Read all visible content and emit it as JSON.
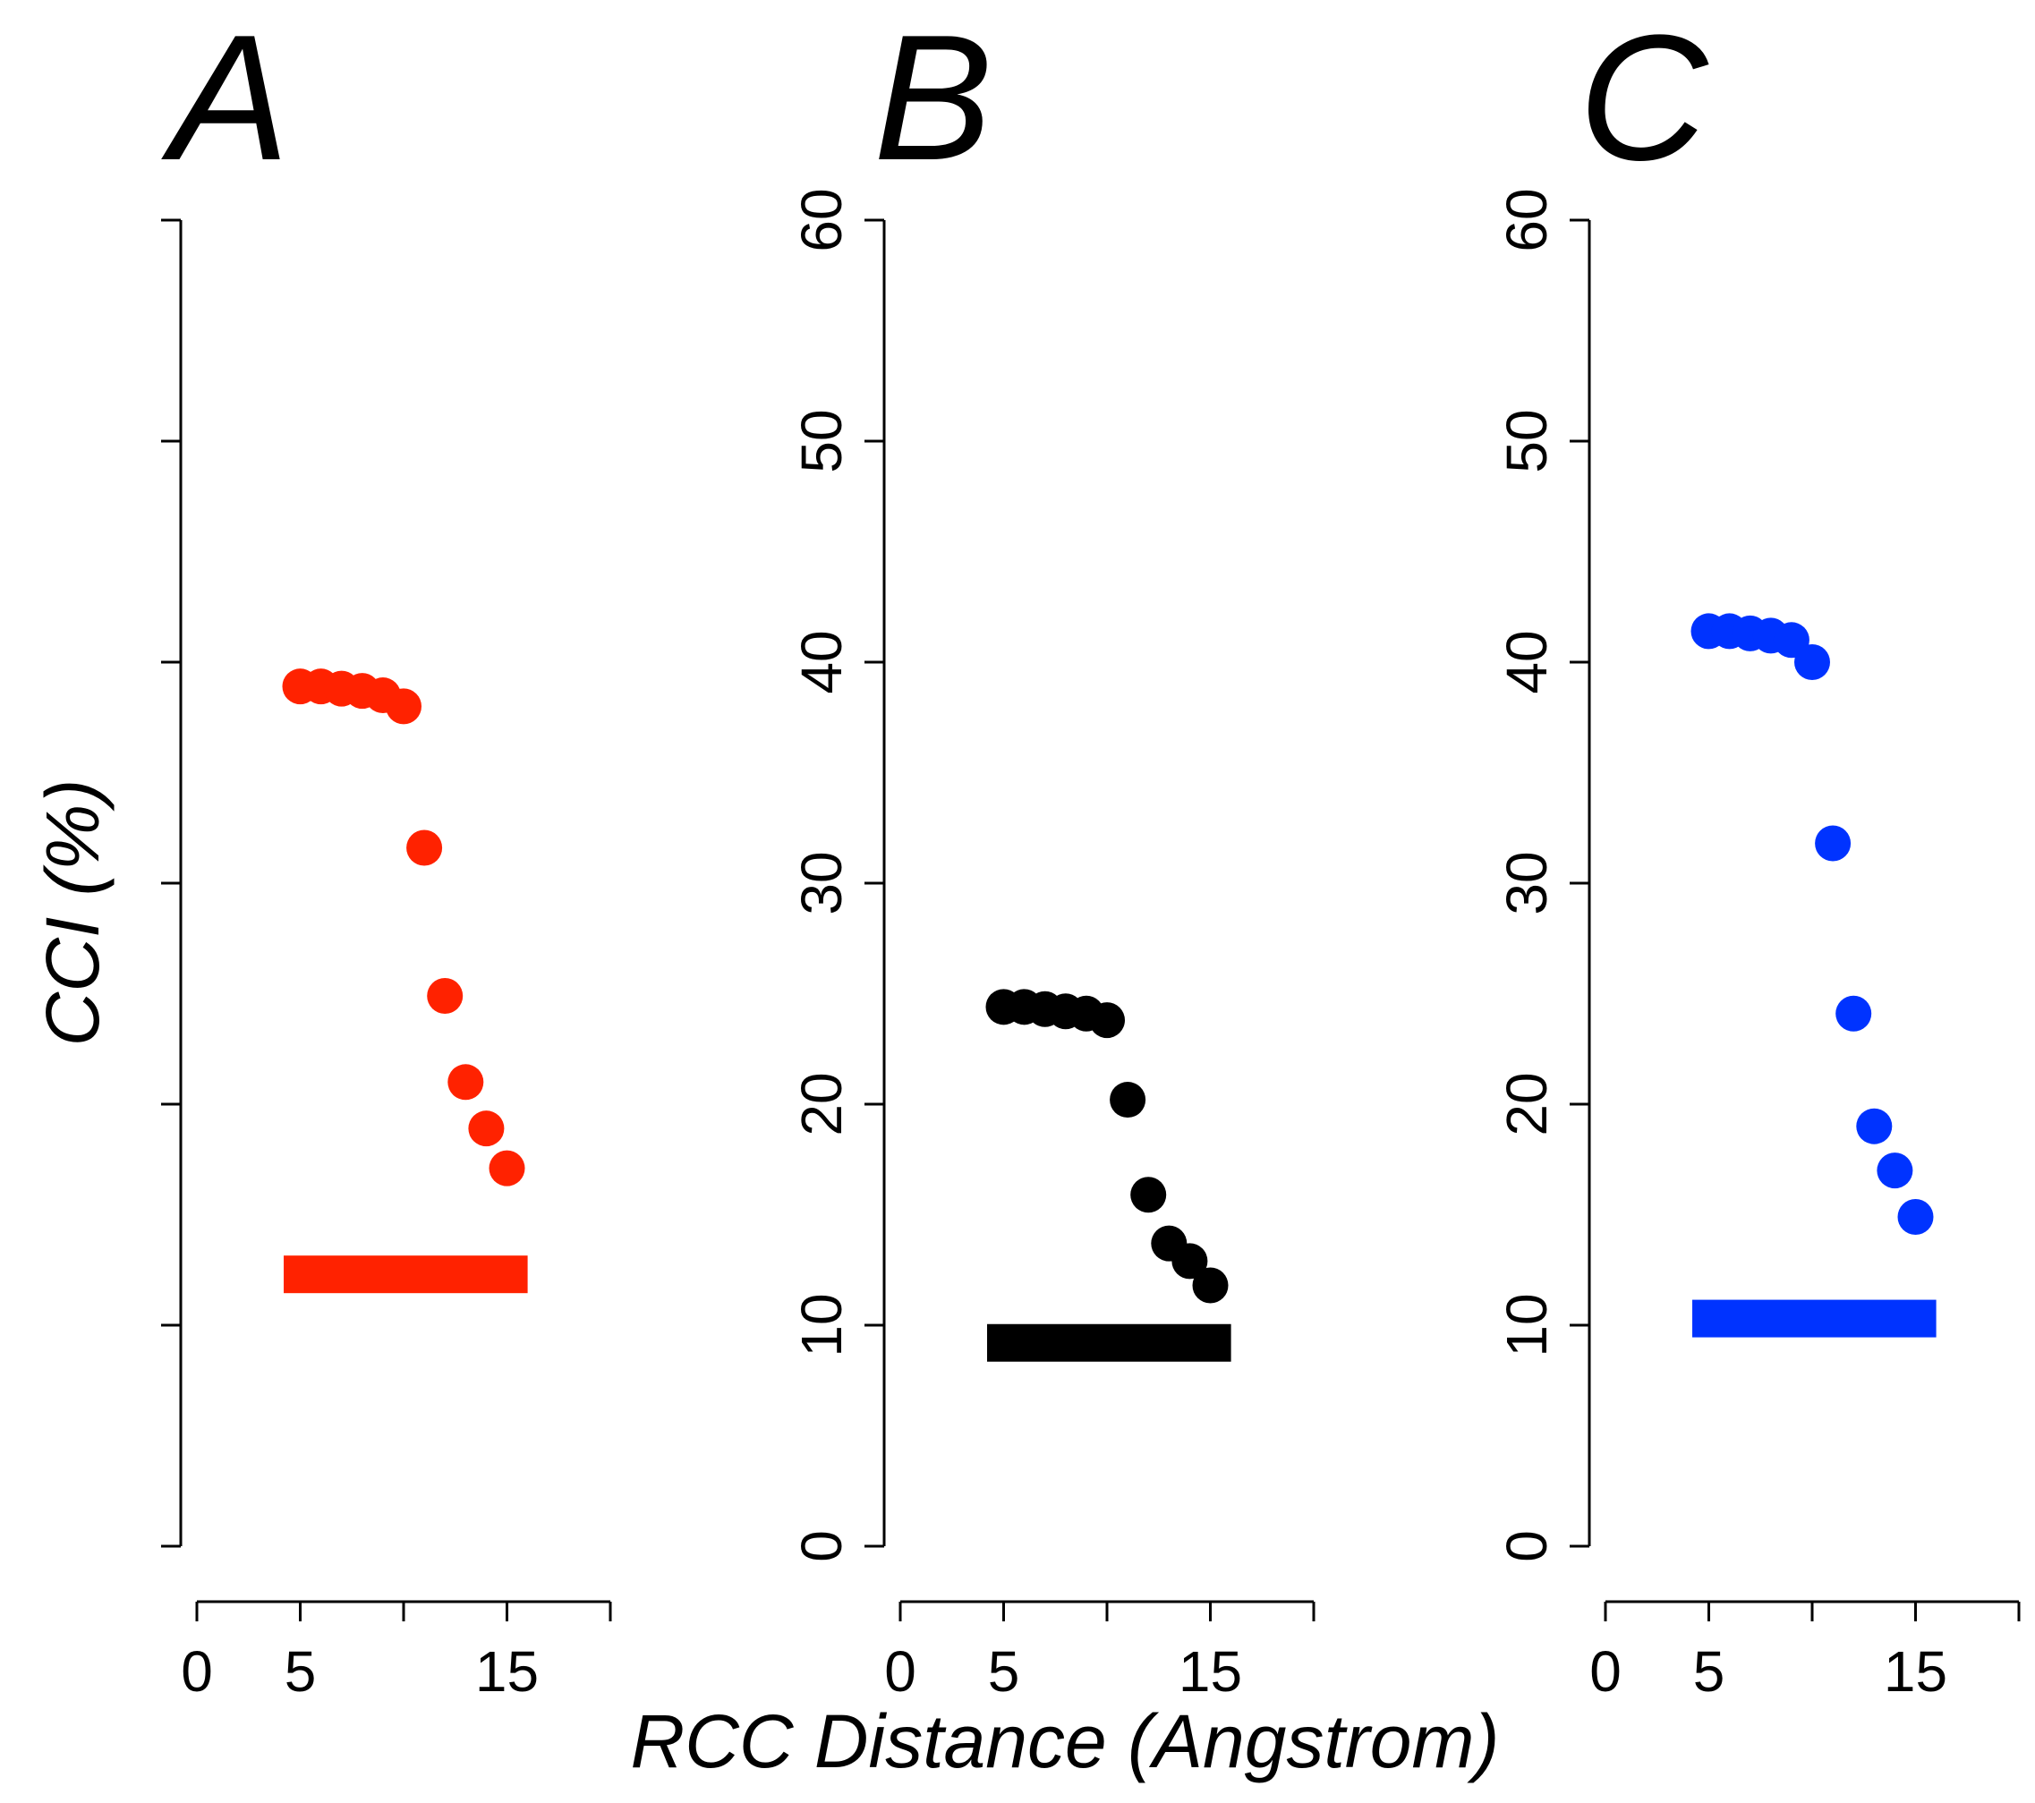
{
  "chart_data": {
    "type": "scatter",
    "xlabel": "RCC Distance (Angstrom)",
    "ylabel": "CCI (%)",
    "xlim": [
      0,
      20
    ],
    "ylim": [
      0,
      60
    ],
    "x_ticks": [
      0,
      5,
      10,
      15,
      20
    ],
    "x_tick_labels": [
      "0",
      "5",
      "",
      "15",
      ""
    ],
    "y_ticks": [
      0,
      10,
      20,
      30,
      40,
      50,
      60
    ],
    "panels": [
      {
        "label": "A",
        "color": "#ff2200",
        "show_y_tick_labels": false,
        "x": [
          5,
          6,
          7,
          8,
          9,
          10,
          11,
          12,
          13,
          14,
          15
        ],
        "y": [
          38.9,
          38.9,
          38.8,
          38.7,
          38.5,
          38.0,
          31.6,
          24.9,
          21.0,
          18.9,
          17.1
        ],
        "baseline": {
          "x_start": 4.2,
          "x_end": 16.0,
          "y": 12.3
        }
      },
      {
        "label": "B",
        "color": "#000000",
        "show_y_tick_labels": true,
        "x": [
          5,
          6,
          7,
          8,
          9,
          10,
          11,
          12,
          13,
          14,
          15
        ],
        "y": [
          24.4,
          24.4,
          24.3,
          24.2,
          24.1,
          23.8,
          20.2,
          15.9,
          13.7,
          12.9,
          11.8
        ],
        "baseline": {
          "x_start": 4.2,
          "x_end": 16.0,
          "y": 9.2
        }
      },
      {
        "label": "C",
        "color": "#0033ff",
        "show_y_tick_labels": true,
        "x": [
          5,
          6,
          7,
          8,
          9,
          10,
          11,
          12,
          13,
          14,
          15
        ],
        "y": [
          41.4,
          41.4,
          41.3,
          41.2,
          41.0,
          40.0,
          31.8,
          24.1,
          19.0,
          17.0,
          14.9
        ],
        "baseline": {
          "x_start": 4.2,
          "x_end": 16.0,
          "y": 10.3
        }
      }
    ]
  }
}
